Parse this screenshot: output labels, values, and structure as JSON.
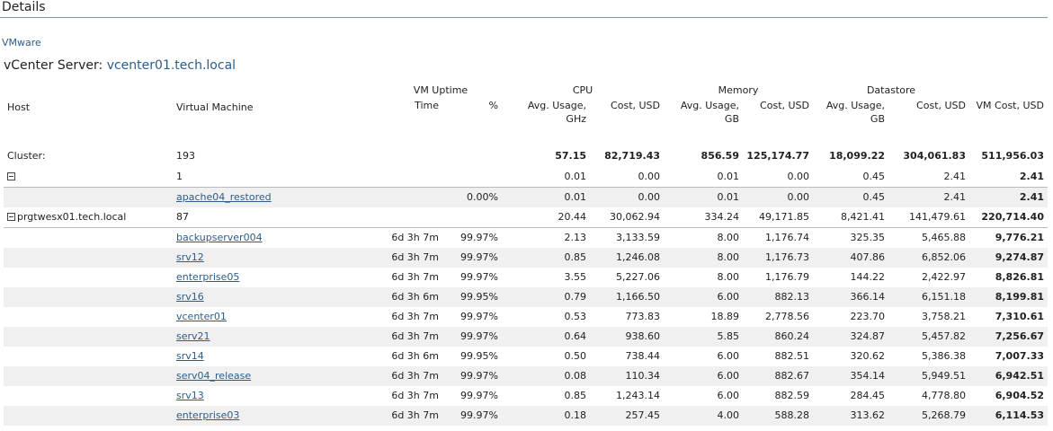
{
  "page": {
    "title": "Details",
    "vmware_link": "VMware",
    "vcenter_label": "vCenter Server:",
    "vcenter_name": "vcenter01.tech.local"
  },
  "headers": {
    "host": "Host",
    "virtual_machine": "Virtual Machine",
    "vm_uptime": "VM Uptime",
    "time": "Time",
    "percent": "%",
    "cpu": "CPU",
    "cpu_avg": "Avg. Usage, GHz",
    "cpu_cost": "Cost, USD",
    "memory": "Memory",
    "mem_avg": "Avg. Usage, GB",
    "mem_cost": "Cost, USD",
    "datastore": "Datastore",
    "ds_avg": "Avg. Usage, GB",
    "ds_cost": "Cost, USD",
    "vm_cost": "VM Cost, USD"
  },
  "cluster": {
    "label": "Cluster:",
    "vm_count": "193",
    "cpu_avg": "57.15",
    "cpu_cost": "82,719.43",
    "mem_avg": "856.59",
    "mem_cost": "125,174.77",
    "ds_avg": "18,099.22",
    "ds_cost": "304,061.83",
    "vm_cost": "511,956.03"
  },
  "group1": {
    "host": "",
    "vm_count": "1",
    "cpu_avg": "0.01",
    "cpu_cost": "0.00",
    "mem_avg": "0.01",
    "mem_cost": "0.00",
    "ds_avg": "0.45",
    "ds_cost": "2.41",
    "vm_cost": "2.41"
  },
  "group1_vms": [
    {
      "name": "apache04_restored",
      "time": "",
      "pct": "0.00%",
      "cpu_avg": "0.01",
      "cpu_cost": "0.00",
      "mem_avg": "0.01",
      "mem_cost": "0.00",
      "ds_avg": "0.45",
      "ds_cost": "2.41",
      "vm_cost": "2.41"
    }
  ],
  "group2": {
    "host": "prgtwesx01.tech.local",
    "vm_count": "87",
    "cpu_avg": "20.44",
    "cpu_cost": "30,062.94",
    "mem_avg": "334.24",
    "mem_cost": "49,171.85",
    "ds_avg": "8,421.41",
    "ds_cost": "141,479.61",
    "vm_cost": "220,714.40"
  },
  "group2_vms": [
    {
      "name": "backupserver004",
      "time": "6d 3h 7m",
      "pct": "99.97%",
      "cpu_avg": "2.13",
      "cpu_cost": "3,133.59",
      "mem_avg": "8.00",
      "mem_cost": "1,176.74",
      "ds_avg": "325.35",
      "ds_cost": "5,465.88",
      "vm_cost": "9,776.21"
    },
    {
      "name": "srv12",
      "time": "6d 3h 7m",
      "pct": "99.97%",
      "cpu_avg": "0.85",
      "cpu_cost": "1,246.08",
      "mem_avg": "8.00",
      "mem_cost": "1,176.73",
      "ds_avg": "407.86",
      "ds_cost": "6,852.06",
      "vm_cost": "9,274.87"
    },
    {
      "name": "enterprise05",
      "time": "6d 3h 7m",
      "pct": "99.97%",
      "cpu_avg": "3.55",
      "cpu_cost": "5,227.06",
      "mem_avg": "8.00",
      "mem_cost": "1,176.79",
      "ds_avg": "144.22",
      "ds_cost": "2,422.97",
      "vm_cost": "8,826.81"
    },
    {
      "name": "srv16",
      "time": "6d 3h 6m",
      "pct": "99.95%",
      "cpu_avg": "0.79",
      "cpu_cost": "1,166.50",
      "mem_avg": "6.00",
      "mem_cost": "882.13",
      "ds_avg": "366.14",
      "ds_cost": "6,151.18",
      "vm_cost": "8,199.81"
    },
    {
      "name": "vcenter01",
      "time": "6d 3h 7m",
      "pct": "99.97%",
      "cpu_avg": "0.53",
      "cpu_cost": "773.83",
      "mem_avg": "18.89",
      "mem_cost": "2,778.56",
      "ds_avg": "223.70",
      "ds_cost": "3,758.21",
      "vm_cost": "7,310.61"
    },
    {
      "name": "serv21",
      "time": "6d 3h 7m",
      "pct": "99.97%",
      "cpu_avg": "0.64",
      "cpu_cost": "938.60",
      "mem_avg": "5.85",
      "mem_cost": "860.24",
      "ds_avg": "324.87",
      "ds_cost": "5,457.82",
      "vm_cost": "7,256.67"
    },
    {
      "name": "srv14",
      "time": "6d 3h 6m",
      "pct": "99.95%",
      "cpu_avg": "0.50",
      "cpu_cost": "738.44",
      "mem_avg": "6.00",
      "mem_cost": "882.51",
      "ds_avg": "320.62",
      "ds_cost": "5,386.38",
      "vm_cost": "7,007.33"
    },
    {
      "name": "serv04_release",
      "time": "6d 3h 7m",
      "pct": "99.97%",
      "cpu_avg": "0.08",
      "cpu_cost": "110.34",
      "mem_avg": "6.00",
      "mem_cost": "882.67",
      "ds_avg": "354.14",
      "ds_cost": "5,949.51",
      "vm_cost": "6,942.51"
    },
    {
      "name": "srv13",
      "time": "6d 3h 7m",
      "pct": "99.97%",
      "cpu_avg": "0.85",
      "cpu_cost": "1,243.14",
      "mem_avg": "6.00",
      "mem_cost": "882.59",
      "ds_avg": "284.45",
      "ds_cost": "4,778.80",
      "vm_cost": "6,904.52"
    },
    {
      "name": "enterprise03",
      "time": "6d 3h 7m",
      "pct": "99.97%",
      "cpu_avg": "0.18",
      "cpu_cost": "257.45",
      "mem_avg": "4.00",
      "mem_cost": "588.28",
      "ds_avg": "313.62",
      "ds_cost": "5,268.79",
      "vm_cost": "6,114.53"
    }
  ]
}
